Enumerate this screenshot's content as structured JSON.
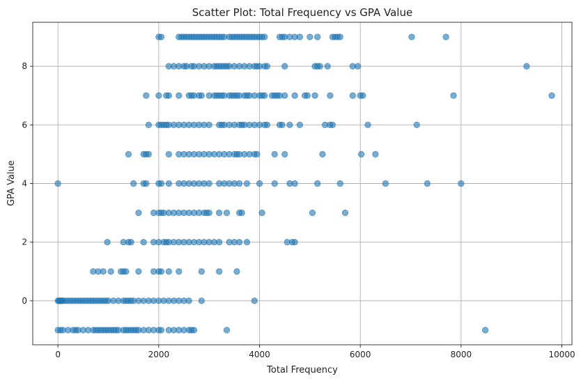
{
  "chart_data": {
    "type": "scatter",
    "title": "Scatter Plot: Total Frequency vs GPA Value",
    "xlabel": "Total Frequency",
    "ylabel": "GPA Value",
    "xlim": [
      -500,
      10200
    ],
    "ylim": [
      -1.5,
      9.5
    ],
    "xticks": [
      0,
      2000,
      4000,
      6000,
      8000,
      10000
    ],
    "yticks": [
      0,
      2,
      4,
      6,
      8
    ],
    "grid": true,
    "color": "#1f77b4",
    "series": [
      {
        "x": [
          2000,
          2050,
          2400,
          2450,
          2500,
          2550,
          2600,
          2650,
          2700,
          2750,
          2800,
          2850,
          2900,
          2950,
          3000,
          3050,
          3100,
          3150,
          3200,
          3250,
          3300,
          3400,
          3450,
          3500,
          3550,
          3600,
          3650,
          3700,
          3750,
          3800,
          3850,
          3900,
          3950,
          4000,
          4050,
          4100,
          4400,
          4450,
          4500,
          4600,
          4700,
          4800,
          5000,
          5150,
          5450,
          5500,
          5550,
          5600,
          7020,
          7700,
          2200,
          2300,
          2400,
          2500,
          2550,
          2650,
          2700,
          2800,
          2900,
          3000,
          3100,
          3150,
          3200,
          3250,
          3300,
          3350,
          3400,
          3500,
          3600,
          3700,
          3800,
          3900,
          3950,
          4000,
          4100,
          4150,
          4500,
          5100,
          5150,
          5200,
          5350,
          5850,
          5950,
          9300,
          1750,
          2000,
          2150,
          2200,
          2400,
          2600,
          2650,
          2700,
          2800,
          2850,
          3000,
          3100,
          3150,
          3200,
          3250,
          3300,
          3400,
          3450,
          3500,
          3550,
          3600,
          3700,
          3750,
          3800,
          3900,
          4000,
          4050,
          4100,
          4250,
          4300,
          4350,
          4400,
          4500,
          4700,
          4900,
          4950,
          5100,
          5400,
          5850,
          6000,
          6050,
          7850,
          9800,
          1800,
          2000,
          2050,
          2100,
          2150,
          2200,
          2300,
          2400,
          2500,
          2600,
          2700,
          2800,
          2900,
          3000,
          3200,
          3250,
          3300,
          3400,
          3500,
          3600,
          3650,
          3700,
          3800,
          3900,
          4000,
          4100,
          4150,
          4400,
          4450,
          4600,
          4800,
          5300,
          5400,
          5450,
          6150,
          7120,
          1400,
          1700,
          1750,
          1800,
          2200,
          2400,
          2500,
          2600,
          2700,
          2800,
          2900,
          3000,
          3100,
          3200,
          3300,
          3400,
          3500,
          3550,
          3600,
          3700,
          3800,
          3900,
          3950,
          4300,
          4500,
          5250,
          6020,
          6300,
          0,
          1500,
          1700,
          1750,
          2000,
          2050,
          2200,
          2400,
          2500,
          2600,
          2700,
          2800,
          2900,
          3000,
          3200,
          3300,
          3400,
          3500,
          3600,
          3750,
          4000,
          4300,
          4600,
          4700,
          5150,
          5600,
          6500,
          7330,
          8000,
          1600,
          1900,
          2000,
          2050,
          2100,
          2200,
          2300,
          2400,
          2500,
          2600,
          2700,
          2800,
          2900,
          2950,
          3000,
          3200,
          3350,
          3600,
          3650,
          4050,
          5050,
          5700,
          980,
          1300,
          1400,
          1450,
          1700,
          1900,
          2000,
          2100,
          2150,
          2200,
          2300,
          2400,
          2500,
          2600,
          2700,
          2800,
          2900,
          3000,
          3100,
          3200,
          3400,
          3500,
          3600,
          3750,
          4550,
          4650,
          4700,
          700,
          800,
          900,
          1050,
          1250,
          1300,
          1350,
          1600,
          1900,
          2000,
          2050,
          2200,
          2400,
          2850,
          3200,
          3550,
          0,
          20,
          40,
          60,
          80,
          100,
          150,
          200,
          250,
          300,
          350,
          400,
          450,
          500,
          550,
          600,
          650,
          700,
          750,
          800,
          850,
          900,
          950,
          1000,
          1100,
          1200,
          1300,
          1350,
          1400,
          1450,
          1500,
          1600,
          1700,
          1800,
          1900,
          2000,
          2100,
          2200,
          2300,
          2400,
          2500,
          2600,
          2850,
          3900,
          0,
          50,
          100,
          200,
          300,
          350,
          400,
          500,
          600,
          700,
          750,
          800,
          850,
          900,
          950,
          1000,
          1050,
          1100,
          1150,
          1200,
          1300,
          1350,
          1400,
          1450,
          1500,
          1550,
          1600,
          1700,
          1800,
          1900,
          2000,
          2050,
          2200,
          2300,
          2400,
          2500,
          2600,
          2650,
          2700,
          3350,
          8480
        ],
        "y": [
          9,
          9,
          9,
          9,
          9,
          9,
          9,
          9,
          9,
          9,
          9,
          9,
          9,
          9,
          9,
          9,
          9,
          9,
          9,
          9,
          9,
          9,
          9,
          9,
          9,
          9,
          9,
          9,
          9,
          9,
          9,
          9,
          9,
          9,
          9,
          9,
          9,
          9,
          9,
          9,
          9,
          9,
          9,
          9,
          9,
          9,
          9,
          9,
          9,
          9,
          8,
          8,
          8,
          8,
          8,
          8,
          8,
          8,
          8,
          8,
          8,
          8,
          8,
          8,
          8,
          8,
          8,
          8,
          8,
          8,
          8,
          8,
          8,
          8,
          8,
          8,
          8,
          8,
          8,
          8,
          8,
          8,
          8,
          8,
          7,
          7,
          7,
          7,
          7,
          7,
          7,
          7,
          7,
          7,
          7,
          7,
          7,
          7,
          7,
          7,
          7,
          7,
          7,
          7,
          7,
          7,
          7,
          7,
          7,
          7,
          7,
          7,
          7,
          7,
          7,
          7,
          7,
          7,
          7,
          7,
          7,
          7,
          7,
          7,
          7,
          7,
          7,
          6,
          6,
          6,
          6,
          6,
          6,
          6,
          6,
          6,
          6,
          6,
          6,
          6,
          6,
          6,
          6,
          6,
          6,
          6,
          6,
          6,
          6,
          6,
          6,
          6,
          6,
          6,
          6,
          6,
          6,
          6,
          6,
          6,
          6,
          6,
          6,
          5,
          5,
          5,
          5,
          5,
          5,
          5,
          5,
          5,
          5,
          5,
          5,
          5,
          5,
          5,
          5,
          5,
          5,
          5,
          5,
          5,
          5,
          5,
          5,
          5,
          5,
          5,
          5,
          4,
          4,
          4,
          4,
          4,
          4,
          4,
          4,
          4,
          4,
          4,
          4,
          4,
          4,
          4,
          4,
          4,
          4,
          4,
          4,
          4,
          4,
          4,
          4,
          4,
          4,
          4,
          4,
          4,
          3,
          3,
          3,
          3,
          3,
          3,
          3,
          3,
          3,
          3,
          3,
          3,
          3,
          3,
          3,
          3,
          3,
          3,
          3,
          3,
          3,
          3,
          2,
          2,
          2,
          2,
          2,
          2,
          2,
          2,
          2,
          2,
          2,
          2,
          2,
          2,
          2,
          2,
          2,
          2,
          2,
          2,
          2,
          2,
          2,
          2,
          2,
          2,
          2,
          1,
          1,
          1,
          1,
          1,
          1,
          1,
          1,
          1,
          1,
          1,
          1,
          1,
          1,
          1,
          1,
          0,
          0,
          0,
          0,
          0,
          0,
          0,
          0,
          0,
          0,
          0,
          0,
          0,
          0,
          0,
          0,
          0,
          0,
          0,
          0,
          0,
          0,
          0,
          0,
          0,
          0,
          0,
          0,
          0,
          0,
          0,
          0,
          0,
          0,
          0,
          0,
          0,
          0,
          0,
          0,
          0,
          0,
          0,
          0,
          -1,
          -1,
          -1,
          -1,
          -1,
          -1,
          -1,
          -1,
          -1,
          -1,
          -1,
          -1,
          -1,
          -1,
          -1,
          -1,
          -1,
          -1,
          -1,
          -1,
          -1,
          -1,
          -1,
          -1,
          -1,
          -1,
          -1,
          -1,
          -1,
          -1,
          -1,
          -1,
          -1,
          -1,
          -1,
          -1,
          -1,
          -1,
          -1,
          -1,
          -1
        ]
      }
    ]
  }
}
